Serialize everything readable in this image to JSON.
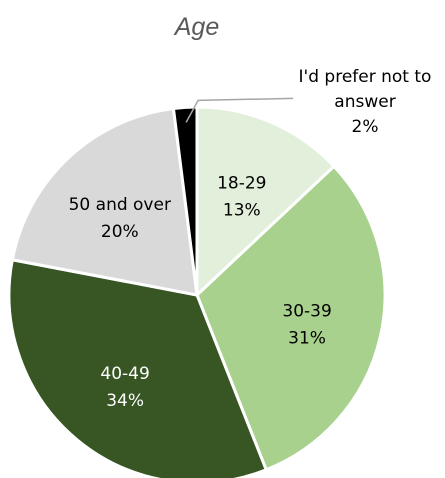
{
  "chart_data": {
    "type": "pie",
    "title": "Age",
    "start_angle_deg": 0,
    "direction": "clockwise",
    "slices": [
      {
        "label": "18-29",
        "value": 13,
        "display": "13%",
        "color": "#e2efda"
      },
      {
        "label": "30-39",
        "value": 31,
        "display": "31%",
        "color": "#a9d18e"
      },
      {
        "label": "40-49",
        "value": 34,
        "display": "34%",
        "color": "#375623"
      },
      {
        "label": "50 and over",
        "value": 20,
        "display": "20%",
        "color": "#d9d9d9"
      },
      {
        "label": "I'd prefer not to answer",
        "label_lines": [
          "I'd prefer not to",
          "answer"
        ],
        "value": 2,
        "display": "2%",
        "color": "#000000"
      }
    ],
    "slice_border_color": "#ffffff",
    "label_colors": {
      "light": "#000000",
      "dark": "#ffffff"
    },
    "leader_line_color": "#a6a6a6",
    "legend": "none",
    "grid": false
  }
}
